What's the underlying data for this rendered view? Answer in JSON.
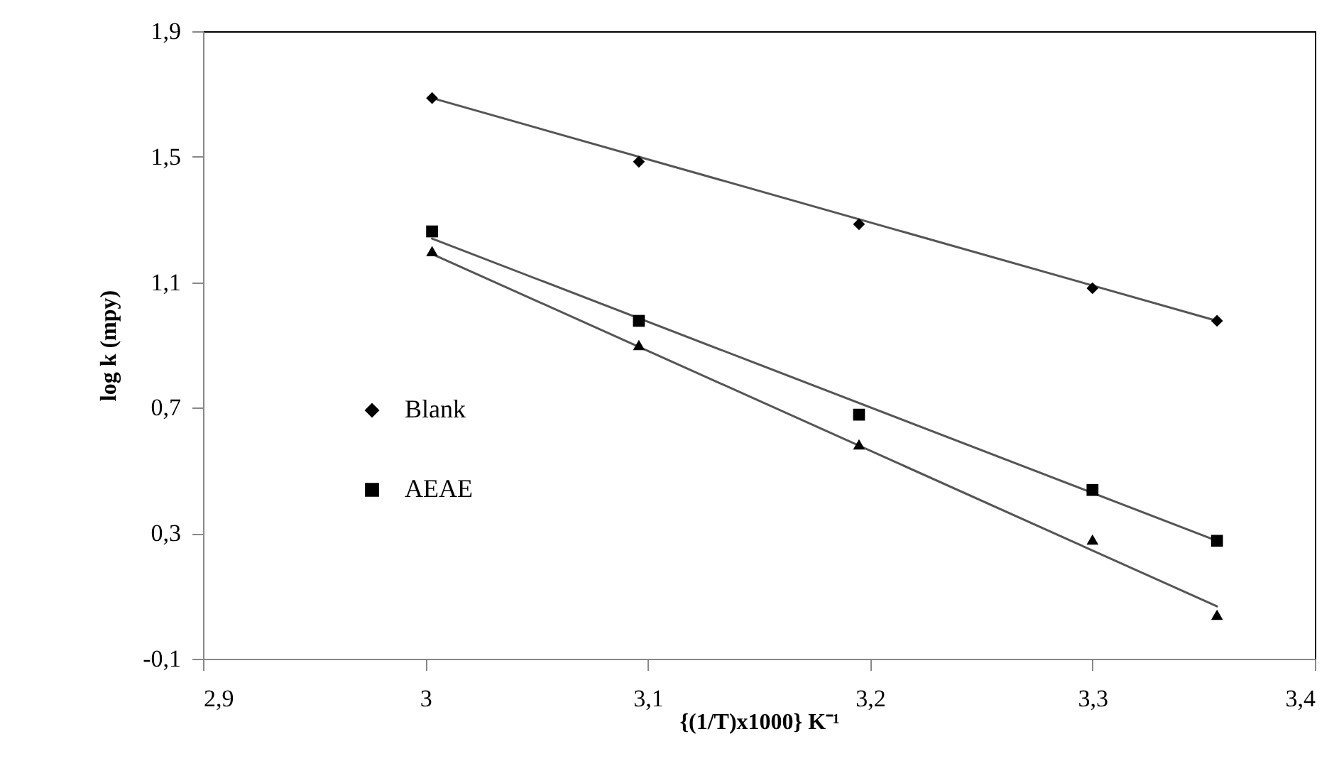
{
  "chart_data": {
    "type": "scatter",
    "xlabel": "{(1/T)x1000} K⁻¹",
    "ylabel": "log k (mpy)",
    "xlim": [
      2.9,
      3.4
    ],
    "xticks": [
      {
        "value": 2.9,
        "label": "2,9"
      },
      3,
      {
        "value": 3.1,
        "label": "3,1"
      },
      {
        "value": 3.2,
        "label": "3,2"
      },
      {
        "value": 3.3,
        "label": "3,3"
      },
      {
        "value": 3.4,
        "label": "3,4"
      }
    ],
    "ylim": [
      -0.1,
      1.9
    ],
    "yticks": [
      {
        "value": -0.1,
        "label": "-0,1"
      },
      {
        "value": 0.3,
        "label": "0,3"
      },
      {
        "value": 0.7,
        "label": "0,7"
      },
      {
        "value": 1.1,
        "label": "1,1"
      },
      {
        "value": 1.5,
        "label": "1,5"
      },
      {
        "value": 1.9,
        "label": "1,9"
      }
    ],
    "grid": false,
    "legend": "bottom left",
    "series": [
      {
        "name": "Blank",
        "type": "scatter",
        "marker": "diamond",
        "color": "#000000",
        "x": [
          3.003,
          3.096,
          3.195,
          3.3,
          3.356
        ],
        "values": [
          1.687,
          1.484,
          1.285,
          1.081,
          0.977
        ]
      },
      {
        "name": "AEAE",
        "type": "scatter",
        "marker": "square",
        "color": "#000000",
        "x": [
          3.003,
          3.096,
          3.195,
          3.3,
          3.356
        ],
        "values": [
          1.262,
          0.977,
          0.678,
          0.438,
          0.276
        ]
      },
      {
        "type": "scatter",
        "marker": "triangle",
        "color": "#000000",
        "x": [
          3.003,
          3.096,
          3.195,
          3.3,
          3.356
        ],
        "values": [
          1.199,
          0.9,
          0.583,
          0.28,
          0.04
        ]
      },
      {
        "type": "line",
        "marker": "none",
        "line_style": "solid",
        "color": "#555555",
        "x": [
          3.003,
          3.356
        ],
        "values": [
          1.687,
          0.977
        ]
      },
      {
        "type": "line",
        "marker": "none",
        "line_style": "solid",
        "color": "#555555",
        "x": [
          3.003,
          3.356
        ],
        "values": [
          1.239,
          0.276
        ]
      },
      {
        "type": "line",
        "marker": "none",
        "line_style": "solid",
        "color": "#555555",
        "x": [
          3.003,
          3.356
        ],
        "values": [
          1.19,
          0.067
        ]
      }
    ]
  }
}
